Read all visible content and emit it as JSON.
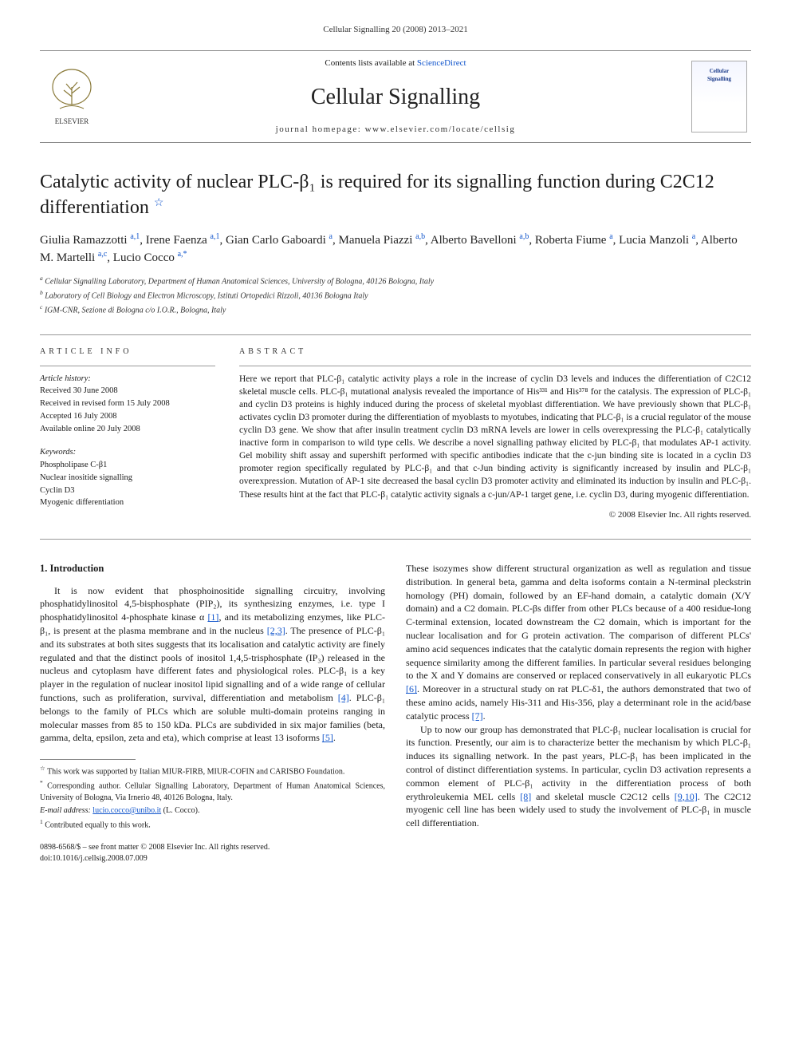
{
  "running_head": "Cellular Signalling 20 (2008) 2013–2021",
  "masthead": {
    "contents_prefix": "Contents lists available at ",
    "contents_link": "ScienceDirect",
    "journal_name": "Cellular Signalling",
    "homepage_label": "journal homepage: www.elsevier.com/locate/cellsig",
    "elsevier_label": "ELSEVIER",
    "cover_text_1": "Cellular",
    "cover_text_2": "Signalling"
  },
  "title_main": "Catalytic activity of nuclear PLC-β₁ is required for its signalling function during C2C12 differentiation",
  "star_glyph": "☆",
  "authors_html": "Giulia Ramazzotti <sup class='aff'>a,1</sup>, Irene Faenza <sup class='aff'>a,1</sup>, Gian Carlo Gaboardi <sup class='aff'>a</sup>, Manuela Piazzi <sup class='aff'>a,b</sup>, Alberto Bavelloni <sup class='aff'>a,b</sup>, Roberta Fiume <sup class='aff'>a</sup>, Lucia Manzoli <sup class='aff'>a</sup>, Alberto M. Martelli <sup class='aff'>a,c</sup>, Lucio Cocco <sup class='aff'>a,*</sup>",
  "affiliations": {
    "a": "Cellular Signalling Laboratory, Department of Human Anatomical Sciences, University of Bologna, 40126 Bologna, Italy",
    "b": "Laboratory of Cell Biology and Electron Microscopy, Istituti Ortopedici Rizzoli, 40136 Bologna Italy",
    "c": "IGM-CNR, Sezione di Bologna c/o I.O.R., Bologna, Italy"
  },
  "article_info_heading": "ARTICLE INFO",
  "abstract_heading": "ABSTRACT",
  "history": {
    "label": "Article history:",
    "received": "Received 30 June 2008",
    "revised": "Received in revised form 15 July 2008",
    "accepted": "Accepted 16 July 2008",
    "online": "Available online 20 July 2008"
  },
  "keywords": {
    "label": "Keywords:",
    "items": [
      "Phospholipase C-β1",
      "Nuclear inositide signalling",
      "Cyclin D3",
      "Myogenic differentiation"
    ]
  },
  "abstract_text": "Here we report that PLC-β₁ catalytic activity plays a role in the increase of cyclin D3 levels and induces the differentiation of C2C12 skeletal muscle cells. PLC-β₁ mutational analysis revealed the importance of His³³¹ and His³⁷⁸ for the catalysis. The expression of PLC-β₁ and cyclin D3 proteins is highly induced during the process of skeletal myoblast differentiation. We have previously shown that PLC-β₁ activates cyclin D3 promoter during the differentiation of myoblasts to myotubes, indicating that PLC-β₁ is a crucial regulator of the mouse cyclin D3 gene. We show that after insulin treatment cyclin D3 mRNA levels are lower in cells overexpressing the PLC-β₁ catalytically inactive form in comparison to wild type cells. We describe a novel signalling pathway elicited by PLC-β₁ that modulates AP-1 activity. Gel mobility shift assay and supershift performed with specific antibodies indicate that the c-jun binding site is located in a cyclin D3 promoter region specifically regulated by PLC-β₁ and that c-Jun binding activity is significantly increased by insulin and PLC-β₁ overexpression. Mutation of AP-1 site decreased the basal cyclin D3 promoter activity and eliminated its induction by insulin and PLC-β₁. These results hint at the fact that PLC-β₁ catalytic activity signals a c-jun/AP-1 target gene, i.e. cyclin D3, during myogenic differentiation.",
  "abstract_copyright": "© 2008 Elsevier Inc. All rights reserved.",
  "intro_heading": "1. Introduction",
  "intro_col1_p1_pre": "It is now evident that phosphoinositide signalling circuitry, involving phosphatidylinositol 4,5-bisphosphate (PIP₂), its synthesizing enzymes, i.e. type I phosphatidylinositol 4-phosphate kinase α ",
  "intro_col1_p1_ref1": "[1]",
  "intro_col1_p1_mid1": ", and its metabolizing enzymes, like PLC-β₁, is present at the plasma membrane and in the nucleus ",
  "intro_col1_p1_ref2": "[2,3]",
  "intro_col1_p1_mid2": ". The presence of PLC-β₁ and its substrates at both sites suggests that its localisation and catalytic activity are finely regulated and that the distinct pools of inositol 1,4,5-trisphosphate (IP₃) released in the nucleus and cytoplasm have different fates and physiological roles. PLC-β₁ is a key player in the regulation of nuclear inositol lipid signalling and of a wide range of cellular functions, such as proliferation, survival, differentiation and metabolism ",
  "intro_col1_p1_ref3": "[4]",
  "intro_col1_p1_mid3": ". PLC-β₁ belongs to the family of PLCs which are soluble multi-domain proteins ranging in molecular masses from 85 to 150 kDa. PLCs are subdivided in six major families (beta, gamma, delta, epsilon, zeta and eta), which comprise at least 13 isoforms ",
  "intro_col1_p1_ref4": "[5]",
  "intro_col1_p1_post": ".",
  "intro_col2_p1_pre": "These isozymes show different structural organization as well as regulation and tissue distribution. In general beta, gamma and delta isoforms contain a N-terminal pleckstrin homology (PH) domain, followed by an EF-hand domain, a catalytic domain (X/Y domain) and a C2 domain. PLC-βs differ from other PLCs because of a 400 residue-long C-terminal extension, located downstream the C2 domain, which is important for the nuclear localisation and for G protein activation. The comparison of different PLCs' amino acid sequences indicates that the catalytic domain represents the region with higher sequence similarity among the different families. In particular several residues belonging to the X and Y domains are conserved or replaced conservatively in all eukaryotic PLCs ",
  "intro_col2_p1_ref1": "[6]",
  "intro_col2_p1_mid1": ". Moreover in a structural study on rat PLC-δ1, the authors demonstrated that two of these amino acids, namely His-311 and His-356, play a determinant role in the acid/base catalytic process ",
  "intro_col2_p1_ref2": "[7]",
  "intro_col2_p1_post": ".",
  "intro_col2_p2_pre": "Up to now our group has demonstrated that PLC-β₁ nuclear localisation is crucial for its function. Presently, our aim is to characterize better the mechanism by which PLC-β₁ induces its signalling network. In the past years, PLC-β₁ has been implicated in the control of distinct differentiation systems. In particular, cyclin D3 activation represents a common element of PLC-β₁ activity in the differentiation process of both erythroleukemia MEL cells ",
  "intro_col2_p2_ref1": "[8]",
  "intro_col2_p2_mid1": " and skeletal muscle C2C12 cells ",
  "intro_col2_p2_ref2": "[9,10]",
  "intro_col2_p2_mid2": ". The C2C12 myogenic cell line has been widely used to study the involvement of PLC-β₁ in muscle cell differentiation.",
  "footnotes": {
    "funding": "This work was supported by Italian MIUR-FIRB, MIUR-COFIN and CARISBO Foundation.",
    "corresponding": "Corresponding author. Cellular Signalling Laboratory, Department of Human Anatomical Sciences, University of Bologna, Via Irnerio 48, 40126 Bologna, Italy.",
    "email_label": "E-mail address: ",
    "email": "lucio.cocco@unibo.it",
    "email_suffix": " (L. Cocco).",
    "equal": "Contributed equally to this work."
  },
  "bottom": {
    "line1": "0898-6568/$ – see front matter © 2008 Elsevier Inc. All rights reserved.",
    "line2": "doi:10.1016/j.cellsig.2008.07.009"
  },
  "colors": {
    "link": "#1155cc",
    "rule": "#999999",
    "text": "#1a1a1a"
  }
}
